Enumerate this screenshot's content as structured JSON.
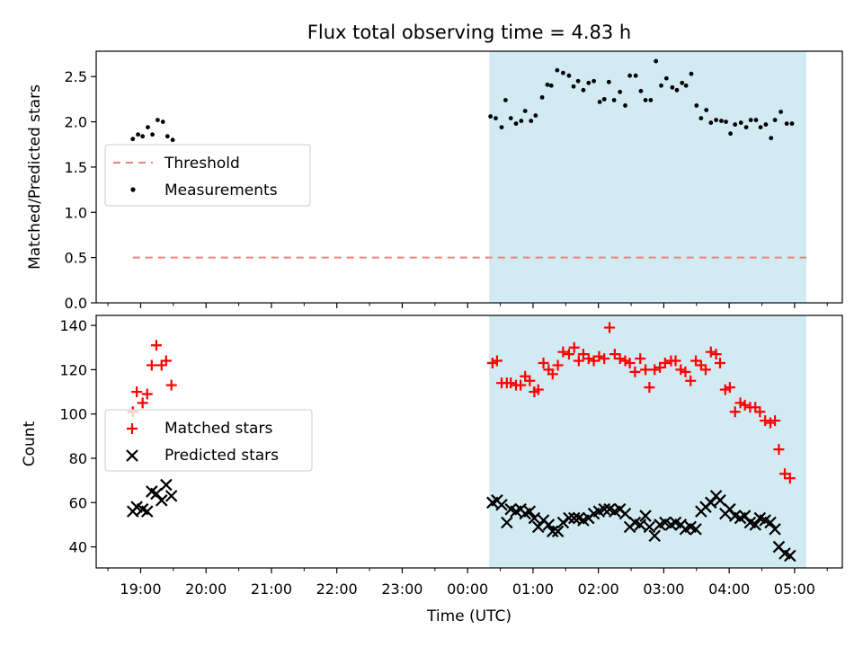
{
  "title": "Flux total observing time = 4.83 h",
  "x_axis": {
    "label": "Time (UTC)",
    "ticks": [
      {
        "t": 19.0,
        "label": "19:00"
      },
      {
        "t": 20.0,
        "label": "20:00"
      },
      {
        "t": 21.0,
        "label": "21:00"
      },
      {
        "t": 22.0,
        "label": "22:00"
      },
      {
        "t": 23.0,
        "label": "23:00"
      },
      {
        "t": 24.0,
        "label": "00:00"
      },
      {
        "t": 25.0,
        "label": "01:00"
      },
      {
        "t": 26.0,
        "label": "02:00"
      },
      {
        "t": 27.0,
        "label": "03:00"
      },
      {
        "t": 28.0,
        "label": "04:00"
      },
      {
        "t": 29.0,
        "label": "05:00"
      }
    ],
    "range": [
      18.32,
      29.73
    ]
  },
  "chart_data": [
    {
      "type": "scatter",
      "ylabel": "Matched/Predicted stars",
      "ylim": [
        0,
        2.78
      ],
      "yticks": [
        {
          "v": 0.0,
          "label": "0.0"
        },
        {
          "v": 0.5,
          "label": "0.5"
        },
        {
          "v": 1.0,
          "label": "1.0"
        },
        {
          "v": 1.5,
          "label": "1.5"
        },
        {
          "v": 2.0,
          "label": "2.0"
        },
        {
          "v": 2.5,
          "label": "2.5"
        }
      ],
      "shaded_region": {
        "x": [
          24.33,
          29.18
        ],
        "color": "#add8e6"
      },
      "threshold": {
        "name": "Threshold",
        "y": 0.5,
        "x": [
          18.88,
          29.18
        ],
        "color": "#f08080"
      },
      "measurements": {
        "name": "Measurements",
        "color": "#000000",
        "points": [
          [
            18.88,
            1.81
          ],
          [
            18.96,
            1.86
          ],
          [
            19.03,
            1.84
          ],
          [
            19.11,
            1.94
          ],
          [
            19.18,
            1.86
          ],
          [
            19.26,
            2.02
          ],
          [
            19.34,
            2.0
          ],
          [
            19.41,
            1.84
          ],
          [
            19.49,
            1.8
          ],
          [
            24.35,
            2.06
          ],
          [
            24.43,
            2.04
          ],
          [
            24.52,
            1.94
          ],
          [
            24.58,
            2.24
          ],
          [
            24.66,
            2.04
          ],
          [
            24.74,
            1.98
          ],
          [
            24.82,
            2.01
          ],
          [
            24.88,
            2.12
          ],
          [
            24.97,
            2.01
          ],
          [
            25.04,
            2.07
          ],
          [
            25.14,
            2.27
          ],
          [
            25.22,
            2.41
          ],
          [
            25.28,
            2.4
          ],
          [
            25.37,
            2.57
          ],
          [
            25.46,
            2.54
          ],
          [
            25.55,
            2.51
          ],
          [
            25.62,
            2.39
          ],
          [
            25.69,
            2.45
          ],
          [
            25.77,
            2.35
          ],
          [
            25.85,
            2.43
          ],
          [
            25.93,
            2.45
          ],
          [
            26.02,
            2.22
          ],
          [
            26.09,
            2.25
          ],
          [
            26.16,
            2.44
          ],
          [
            26.24,
            2.24
          ],
          [
            26.33,
            2.33
          ],
          [
            26.41,
            2.18
          ],
          [
            26.48,
            2.51
          ],
          [
            26.57,
            2.51
          ],
          [
            26.65,
            2.34
          ],
          [
            26.72,
            2.24
          ],
          [
            26.8,
            2.24
          ],
          [
            26.88,
            2.67
          ],
          [
            26.96,
            2.4
          ],
          [
            27.04,
            2.48
          ],
          [
            27.13,
            2.38
          ],
          [
            27.2,
            2.35
          ],
          [
            27.28,
            2.43
          ],
          [
            27.34,
            2.4
          ],
          [
            27.42,
            2.53
          ],
          [
            27.5,
            2.18
          ],
          [
            27.57,
            2.04
          ],
          [
            27.65,
            2.13
          ],
          [
            27.72,
            1.99
          ],
          [
            27.8,
            2.02
          ],
          [
            27.88,
            2.01
          ],
          [
            27.95,
            2.0
          ],
          [
            28.02,
            1.87
          ],
          [
            28.09,
            1.97
          ],
          [
            28.18,
            1.99
          ],
          [
            28.26,
            1.94
          ],
          [
            28.33,
            2.02
          ],
          [
            28.41,
            2.02
          ],
          [
            28.48,
            1.94
          ],
          [
            28.56,
            1.97
          ],
          [
            28.64,
            1.82
          ],
          [
            28.7,
            2.02
          ],
          [
            28.79,
            2.11
          ],
          [
            28.88,
            1.98
          ],
          [
            28.96,
            1.98
          ]
        ]
      },
      "legend": {
        "position": "center-left",
        "entries": [
          "Threshold",
          "Measurements"
        ]
      }
    },
    {
      "type": "scatter",
      "ylabel": "Count",
      "ylim": [
        30.5,
        144.5
      ],
      "yticks": [
        {
          "v": 40,
          "label": "40"
        },
        {
          "v": 60,
          "label": "60"
        },
        {
          "v": 80,
          "label": "80"
        },
        {
          "v": 100,
          "label": "100"
        },
        {
          "v": 120,
          "label": "120"
        },
        {
          "v": 140,
          "label": "140"
        }
      ],
      "shaded_region": {
        "x": [
          24.33,
          29.18
        ],
        "color": "#add8e6"
      },
      "series": [
        {
          "name": "Matched stars",
          "marker": "plus",
          "color": "#ff0000",
          "points": [
            [
              18.88,
              101
            ],
            [
              18.94,
              110
            ],
            [
              19.03,
              105
            ],
            [
              19.1,
              109
            ],
            [
              19.17,
              122
            ],
            [
              19.24,
              131
            ],
            [
              19.32,
              122
            ],
            [
              19.39,
              124
            ],
            [
              19.47,
              113
            ],
            [
              24.38,
              123
            ],
            [
              24.45,
              124
            ],
            [
              24.52,
              114
            ],
            [
              24.6,
              114
            ],
            [
              24.66,
              114
            ],
            [
              24.74,
              113
            ],
            [
              24.81,
              113
            ],
            [
              24.88,
              117
            ],
            [
              24.95,
              115
            ],
            [
              25.02,
              110
            ],
            [
              25.08,
              111
            ],
            [
              25.16,
              123
            ],
            [
              25.24,
              120
            ],
            [
              25.3,
              118
            ],
            [
              25.38,
              122
            ],
            [
              25.46,
              128
            ],
            [
              25.55,
              127
            ],
            [
              25.63,
              130
            ],
            [
              25.7,
              124
            ],
            [
              25.77,
              127
            ],
            [
              25.85,
              125
            ],
            [
              25.93,
              124
            ],
            [
              26.01,
              126
            ],
            [
              26.09,
              125
            ],
            [
              26.17,
              139
            ],
            [
              26.25,
              127
            ],
            [
              26.33,
              125
            ],
            [
              26.41,
              124
            ],
            [
              26.48,
              123
            ],
            [
              26.56,
              119
            ],
            [
              26.64,
              125
            ],
            [
              26.72,
              120
            ],
            [
              26.78,
              112
            ],
            [
              26.86,
              120
            ],
            [
              26.94,
              121
            ],
            [
              27.02,
              123
            ],
            [
              27.11,
              124
            ],
            [
              27.18,
              124
            ],
            [
              27.26,
              120
            ],
            [
              27.33,
              119
            ],
            [
              27.41,
              115
            ],
            [
              27.49,
              124
            ],
            [
              27.57,
              122
            ],
            [
              27.64,
              120
            ],
            [
              27.72,
              128
            ],
            [
              27.8,
              127
            ],
            [
              27.86,
              123
            ],
            [
              27.94,
              111
            ],
            [
              28.01,
              112
            ],
            [
              28.09,
              101
            ],
            [
              28.17,
              105
            ],
            [
              28.24,
              104
            ],
            [
              28.32,
              103
            ],
            [
              28.4,
              103
            ],
            [
              28.47,
              101
            ],
            [
              28.55,
              97
            ],
            [
              28.63,
              96
            ],
            [
              28.7,
              97
            ],
            [
              28.76,
              84
            ],
            [
              28.85,
              73
            ],
            [
              28.93,
              71
            ]
          ]
        },
        {
          "name": "Predicted stars",
          "marker": "x",
          "color": "#000000",
          "points": [
            [
              18.88,
              56
            ],
            [
              18.94,
              58
            ],
            [
              19.03,
              57
            ],
            [
              19.1,
              56
            ],
            [
              19.17,
              65
            ],
            [
              19.24,
              64
            ],
            [
              19.32,
              61
            ],
            [
              19.39,
              68
            ],
            [
              19.47,
              63
            ],
            [
              24.38,
              60
            ],
            [
              24.45,
              61
            ],
            [
              24.52,
              59
            ],
            [
              24.6,
              51
            ],
            [
              24.66,
              57
            ],
            [
              24.74,
              56
            ],
            [
              24.81,
              57
            ],
            [
              24.88,
              55
            ],
            [
              24.95,
              56
            ],
            [
              25.02,
              53
            ],
            [
              25.08,
              49
            ],
            [
              25.16,
              52
            ],
            [
              25.24,
              50
            ],
            [
              25.3,
              47
            ],
            [
              25.38,
              47
            ],
            [
              25.46,
              51
            ],
            [
              25.55,
              53
            ],
            [
              25.63,
              53
            ],
            [
              25.7,
              53
            ],
            [
              25.77,
              52
            ],
            [
              25.85,
              53
            ],
            [
              25.93,
              55
            ],
            [
              26.01,
              56
            ],
            [
              26.09,
              57
            ],
            [
              26.17,
              57
            ],
            [
              26.25,
              56
            ],
            [
              26.33,
              57
            ],
            [
              26.41,
              55
            ],
            [
              26.48,
              49
            ],
            [
              26.56,
              51
            ],
            [
              26.64,
              50
            ],
            [
              26.72,
              54
            ],
            [
              26.78,
              49
            ],
            [
              26.86,
              45
            ],
            [
              26.94,
              50
            ],
            [
              27.02,
              51
            ],
            [
              27.11,
              50
            ],
            [
              27.18,
              51
            ],
            [
              27.26,
              50
            ],
            [
              27.33,
              48
            ],
            [
              27.41,
              49
            ],
            [
              27.49,
              48
            ],
            [
              27.57,
              56
            ],
            [
              27.64,
              58
            ],
            [
              27.72,
              60
            ],
            [
              27.8,
              63
            ],
            [
              27.86,
              61
            ],
            [
              27.94,
              55
            ],
            [
              28.01,
              57
            ],
            [
              28.09,
              54
            ],
            [
              28.17,
              53
            ],
            [
              28.24,
              54
            ],
            [
              28.32,
              51
            ],
            [
              28.4,
              50
            ],
            [
              28.47,
              53
            ],
            [
              28.55,
              52
            ],
            [
              28.63,
              51
            ],
            [
              28.7,
              48
            ],
            [
              28.76,
              40
            ],
            [
              28.85,
              37
            ],
            [
              28.93,
              36
            ]
          ]
        }
      ],
      "legend": {
        "position": "center-left",
        "entries": [
          "Matched stars",
          "Predicted stars"
        ]
      }
    }
  ]
}
